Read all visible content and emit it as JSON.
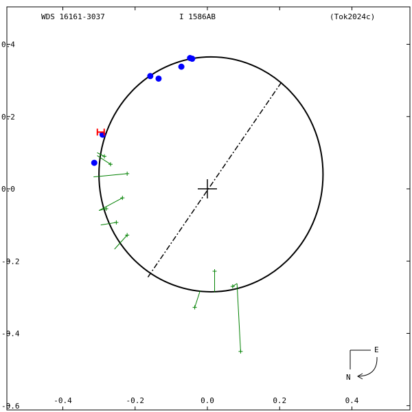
{
  "header": {
    "designation": "WDS 16161-3037",
    "discoverer": "I  1586AB",
    "reference": "(Tok2024c)"
  },
  "compass": {
    "east_label": "E",
    "north_label": "N"
  },
  "colors": {
    "orbit": "#000000",
    "measure_point": "#0000ff",
    "residual": "#008000",
    "first_point": "#ff0000",
    "frame": "#000000"
  },
  "chart_data": {
    "type": "scatter",
    "title": "",
    "xlim": [
      -0.57,
      0.57
    ],
    "ylim": [
      -0.6,
      0.42
    ],
    "x_ticks": [
      -0.4,
      -0.2,
      0.0,
      0.2,
      0.4
    ],
    "x_tick_labels": [
      "-0.4",
      "-0.2",
      "0.0",
      "0.2",
      "0.4"
    ],
    "y_ticks": [
      0.4,
      0.2,
      0.0,
      -0.2,
      -0.4,
      -0.6
    ],
    "y_tick_labels": [
      "0.4",
      "0.2",
      "0.0",
      "-0.2",
      "-0.4",
      "-0.6"
    ],
    "orbit_ellipse": {
      "center": [
        0.01,
        0.04
      ],
      "semi_axis_x": 0.31,
      "semi_axis_y": 0.325
    },
    "primary_position": [
      0.0,
      0.0
    ],
    "line_of_nodes": [
      [
        0.205,
        0.295
      ],
      [
        -0.165,
        -0.245
      ]
    ],
    "measurement_points": [
      [
        -0.042,
        0.36
      ],
      [
        -0.048,
        0.362
      ],
      [
        -0.072,
        0.338
      ],
      [
        -0.135,
        0.305
      ],
      [
        -0.158,
        0.312
      ],
      [
        -0.29,
        0.15
      ],
      [
        -0.313,
        0.072
      ]
    ],
    "first_measure_marker": [
      -0.295,
      0.155
    ],
    "residual_segments": [
      {
        "obs": [
          -0.285,
          0.09
        ],
        "calc": [
          -0.305,
          0.1
        ]
      },
      {
        "obs": [
          -0.268,
          0.068
        ],
        "calc": [
          -0.305,
          0.092
        ]
      },
      {
        "obs": [
          -0.222,
          0.042
        ],
        "calc": [
          -0.315,
          0.033
        ]
      },
      {
        "obs": [
          -0.235,
          -0.025
        ],
        "calc": [
          -0.3,
          -0.06
        ]
      },
      {
        "obs": [
          -0.28,
          -0.055
        ],
        "calc": [
          -0.3,
          -0.06
        ]
      },
      {
        "obs": [
          -0.252,
          -0.093
        ],
        "calc": [
          -0.295,
          -0.1
        ]
      },
      {
        "obs": [
          -0.222,
          -0.128
        ],
        "calc": [
          -0.257,
          -0.167
        ]
      },
      {
        "obs": [
          -0.035,
          -0.328
        ],
        "calc": [
          -0.02,
          -0.282
        ]
      },
      {
        "obs": [
          0.02,
          -0.228
        ],
        "calc": [
          0.02,
          -0.286
        ]
      },
      {
        "obs": [
          0.07,
          -0.27
        ],
        "calc": [
          0.082,
          -0.262
        ]
      },
      {
        "obs": [
          0.092,
          -0.45
        ],
        "calc": [
          0.082,
          -0.262
        ]
      }
    ]
  }
}
